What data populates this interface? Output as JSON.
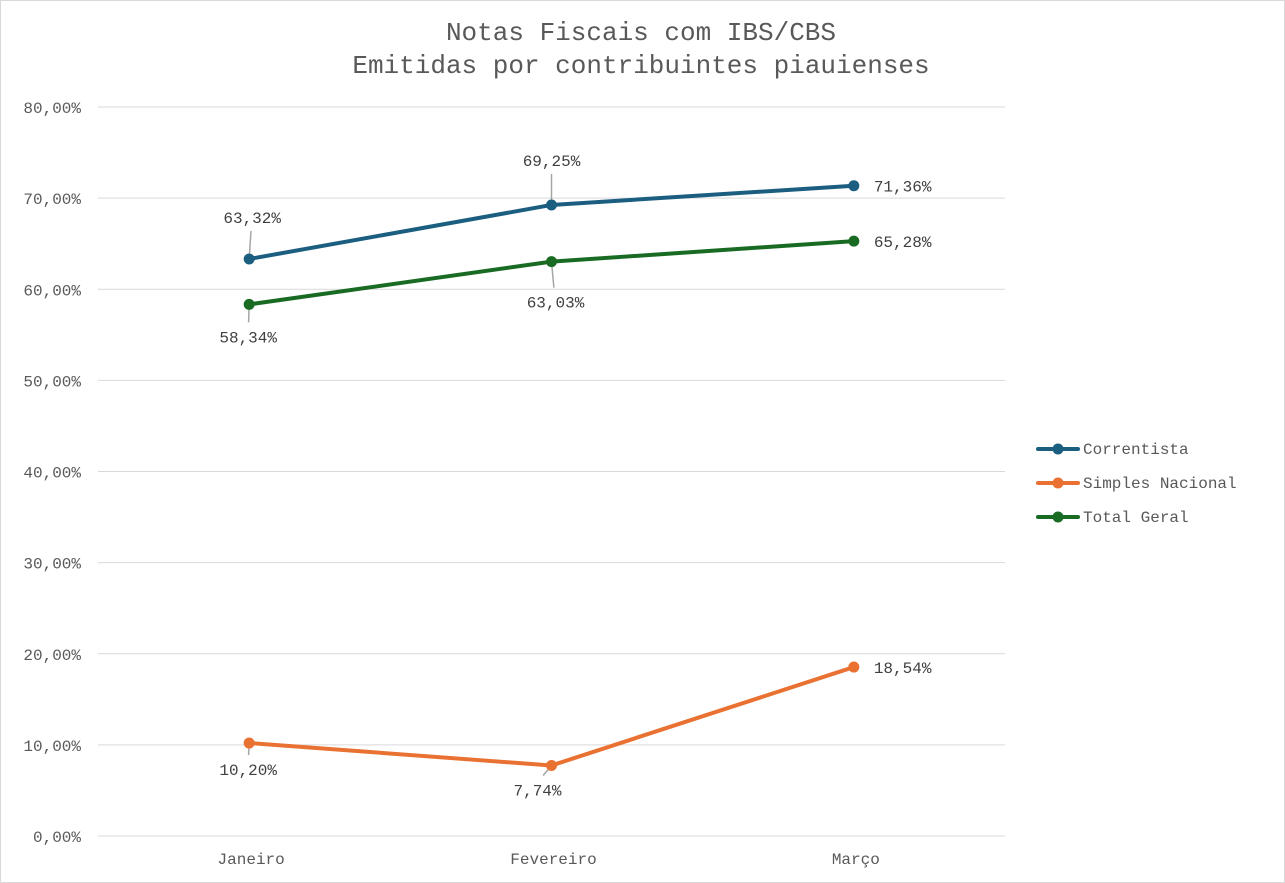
{
  "chart_data": {
    "type": "line",
    "title": [
      "Notas Fiscais com IBS/CBS",
      "Emitidas por contribuintes piauienses"
    ],
    "xlabel": "",
    "ylabel": "",
    "categories": [
      "Janeiro",
      "Fevereiro",
      "Março"
    ],
    "ylim": [
      0,
      80
    ],
    "yticks": [
      0,
      10,
      20,
      30,
      40,
      50,
      60,
      70,
      80
    ],
    "ytick_labels": [
      "0,00%",
      "10,00%",
      "20,00%",
      "30,00%",
      "40,00%",
      "50,00%",
      "60,00%",
      "70,00%",
      "80,00%"
    ],
    "grid": true,
    "legend_position": "right",
    "series": [
      {
        "name": "Correntista",
        "color": "#1b5e80",
        "values": [
          63.32,
          69.25,
          71.36
        ],
        "labels": [
          "63,32%",
          "69,25%",
          "71,36%"
        ]
      },
      {
        "name": "Simples Nacional",
        "color": "#e97132",
        "values": [
          10.2,
          7.74,
          18.54
        ],
        "labels": [
          "10,20%",
          "7,74%",
          "18,54%"
        ]
      },
      {
        "name": "Total Geral",
        "color": "#196b24",
        "values": [
          58.34,
          63.03,
          65.28
        ],
        "labels": [
          "58,34%",
          "63,03%",
          "65,28%"
        ]
      }
    ]
  }
}
